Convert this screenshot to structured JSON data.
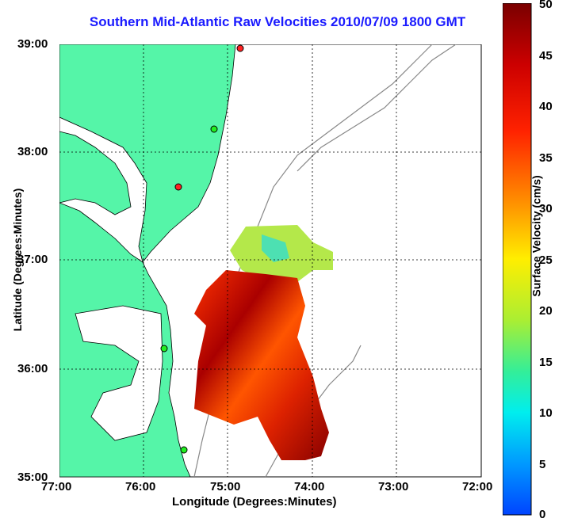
{
  "title": "Southern Mid-Atlantic Raw Velocities 2010/07/09 1800 GMT",
  "axes": {
    "xlabel": "Longitude (Degrees:Minutes)",
    "ylabel": "Latitude (Degrees:Minutes)",
    "xticks": [
      "77:00",
      "76:00",
      "75:00",
      "74:00",
      "73:00",
      "72:00"
    ],
    "yticks": [
      "39:00",
      "38:00",
      "37:00",
      "36:00",
      "35:00"
    ],
    "xlim": [
      -77,
      -72
    ],
    "ylim": [
      35,
      39
    ]
  },
  "colorbar": {
    "label": "Surface Velocity (cm/s)",
    "ticks": [
      "50",
      "45",
      "40",
      "35",
      "30",
      "25",
      "20",
      "15",
      "10",
      "5",
      "0"
    ],
    "range": [
      0,
      50
    ]
  },
  "colors": {
    "land": "#55f5a8",
    "title": "#1a1aff"
  },
  "chart_data": {
    "type": "heatmap",
    "title": "Southern Mid-Atlantic Raw Velocities 2010/07/09 1800 GMT",
    "xlabel": "Longitude (Degrees:Minutes)",
    "ylabel": "Latitude (Degrees:Minutes)",
    "xlim": [
      -77,
      -72
    ],
    "ylim": [
      35,
      39
    ],
    "colorbar_range": [
      0,
      50
    ],
    "colorbar_label": "Surface Velocity (cm/s)",
    "grid": true
  }
}
